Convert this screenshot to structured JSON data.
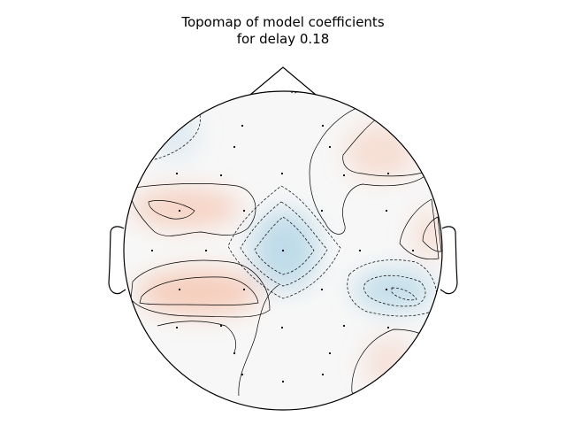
{
  "chart_data": {
    "type": "heatmap",
    "title_lines": [
      "Topomap of model coefficients",
      "for delay 0.18"
    ],
    "colormap": "diverging blue-white-red",
    "colors": {
      "positive": "#f4a582",
      "negative": "#92c5de",
      "neutral": "#f7f7f7",
      "outline": "#000000",
      "sensor_marker": "#000000"
    },
    "sensor_count": 32,
    "regions": [
      {
        "sign": "negative",
        "strength": 0.55,
        "label": "center"
      },
      {
        "sign": "negative",
        "strength": 0.5,
        "label": "right posterior"
      },
      {
        "sign": "negative",
        "strength": 0.25,
        "label": "left frontal"
      },
      {
        "sign": "positive",
        "strength": 0.45,
        "label": "left temporal"
      },
      {
        "sign": "positive",
        "strength": 0.5,
        "label": "left posterior"
      },
      {
        "sign": "positive",
        "strength": 0.3,
        "label": "right frontal"
      },
      {
        "sign": "positive",
        "strength": 0.3,
        "label": "right temporal"
      },
      {
        "sign": "positive",
        "strength": 0.25,
        "label": "right occipital"
      }
    ]
  }
}
